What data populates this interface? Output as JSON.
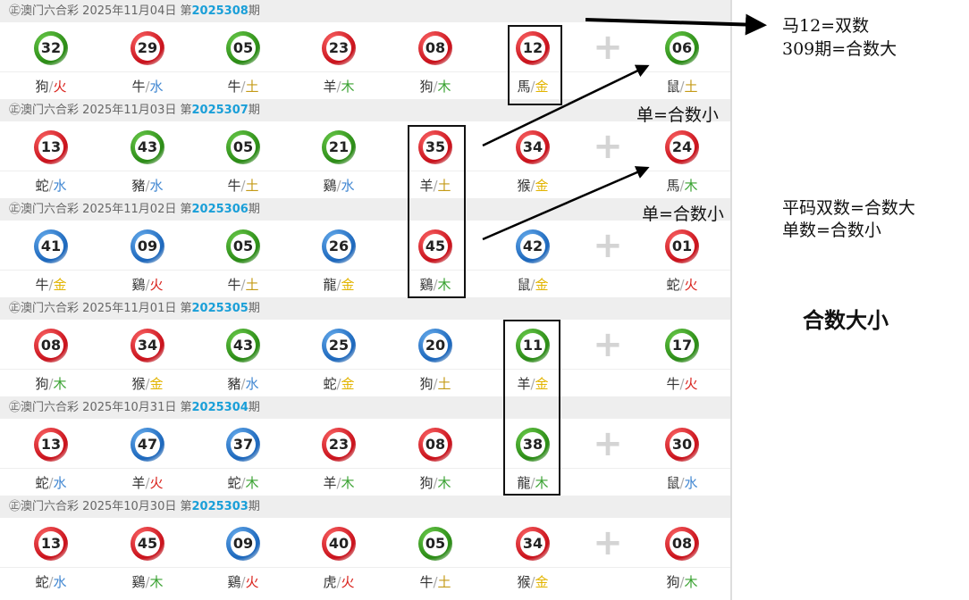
{
  "draws": [
    {
      "lottery": "澳门六合彩",
      "date": "2025年11月04日",
      "prefix": "第",
      "issue": "2025308",
      "suffix": "期",
      "balls": [
        {
          "num": "32",
          "color": "green",
          "zodiac": "狗",
          "element": "火"
        },
        {
          "num": "29",
          "color": "red",
          "zodiac": "牛",
          "element": "水"
        },
        {
          "num": "05",
          "color": "green",
          "zodiac": "牛",
          "element": "土"
        },
        {
          "num": "23",
          "color": "red",
          "zodiac": "羊",
          "element": "木"
        },
        {
          "num": "08",
          "color": "red",
          "zodiac": "狗",
          "element": "木"
        },
        {
          "num": "12",
          "color": "red",
          "zodiac": "馬",
          "element": "金"
        },
        {
          "num": "06",
          "color": "green",
          "zodiac": "鼠",
          "element": "土"
        }
      ]
    },
    {
      "lottery": "澳门六合彩",
      "date": "2025年11月03日",
      "prefix": "第",
      "issue": "2025307",
      "suffix": "期",
      "balls": [
        {
          "num": "13",
          "color": "red",
          "zodiac": "蛇",
          "element": "水"
        },
        {
          "num": "43",
          "color": "green",
          "zodiac": "豬",
          "element": "水"
        },
        {
          "num": "05",
          "color": "green",
          "zodiac": "牛",
          "element": "土"
        },
        {
          "num": "21",
          "color": "green",
          "zodiac": "鷄",
          "element": "水"
        },
        {
          "num": "35",
          "color": "red",
          "zodiac": "羊",
          "element": "土"
        },
        {
          "num": "34",
          "color": "red",
          "zodiac": "猴",
          "element": "金"
        },
        {
          "num": "24",
          "color": "red",
          "zodiac": "馬",
          "element": "木"
        }
      ]
    },
    {
      "lottery": "澳门六合彩",
      "date": "2025年11月02日",
      "prefix": "第",
      "issue": "2025306",
      "suffix": "期",
      "balls": [
        {
          "num": "41",
          "color": "blue",
          "zodiac": "牛",
          "element": "金"
        },
        {
          "num": "09",
          "color": "blue",
          "zodiac": "鷄",
          "element": "火"
        },
        {
          "num": "05",
          "color": "green",
          "zodiac": "牛",
          "element": "土"
        },
        {
          "num": "26",
          "color": "blue",
          "zodiac": "龍",
          "element": "金"
        },
        {
          "num": "45",
          "color": "red",
          "zodiac": "鷄",
          "element": "木"
        },
        {
          "num": "42",
          "color": "blue",
          "zodiac": "鼠",
          "element": "金"
        },
        {
          "num": "01",
          "color": "red",
          "zodiac": "蛇",
          "element": "火"
        }
      ]
    },
    {
      "lottery": "澳门六合彩",
      "date": "2025年11月01日",
      "prefix": "第",
      "issue": "2025305",
      "suffix": "期",
      "balls": [
        {
          "num": "08",
          "color": "red",
          "zodiac": "狗",
          "element": "木"
        },
        {
          "num": "34",
          "color": "red",
          "zodiac": "猴",
          "element": "金"
        },
        {
          "num": "43",
          "color": "green",
          "zodiac": "豬",
          "element": "水"
        },
        {
          "num": "25",
          "color": "blue",
          "zodiac": "蛇",
          "element": "金"
        },
        {
          "num": "20",
          "color": "blue",
          "zodiac": "狗",
          "element": "土"
        },
        {
          "num": "11",
          "color": "green",
          "zodiac": "羊",
          "element": "金"
        },
        {
          "num": "17",
          "color": "green",
          "zodiac": "牛",
          "element": "火"
        }
      ]
    },
    {
      "lottery": "澳门六合彩",
      "date": "2025年10月31日",
      "prefix": "第",
      "issue": "2025304",
      "suffix": "期",
      "balls": [
        {
          "num": "13",
          "color": "red",
          "zodiac": "蛇",
          "element": "水"
        },
        {
          "num": "47",
          "color": "blue",
          "zodiac": "羊",
          "element": "火"
        },
        {
          "num": "37",
          "color": "blue",
          "zodiac": "蛇",
          "element": "木"
        },
        {
          "num": "23",
          "color": "red",
          "zodiac": "羊",
          "element": "木"
        },
        {
          "num": "08",
          "color": "red",
          "zodiac": "狗",
          "element": "木"
        },
        {
          "num": "38",
          "color": "green",
          "zodiac": "龍",
          "element": "木"
        },
        {
          "num": "30",
          "color": "red",
          "zodiac": "鼠",
          "element": "水"
        }
      ]
    },
    {
      "lottery": "澳门六合彩",
      "date": "2025年10月30日",
      "prefix": "第",
      "issue": "2025303",
      "suffix": "期",
      "balls": [
        {
          "num": "13",
          "color": "red",
          "zodiac": "蛇",
          "element": "水"
        },
        {
          "num": "45",
          "color": "red",
          "zodiac": "鷄",
          "element": "木"
        },
        {
          "num": "09",
          "color": "blue",
          "zodiac": "鷄",
          "element": "火"
        },
        {
          "num": "40",
          "color": "red",
          "zodiac": "虎",
          "element": "火"
        },
        {
          "num": "05",
          "color": "green",
          "zodiac": "牛",
          "element": "土"
        },
        {
          "num": "34",
          "color": "red",
          "zodiac": "猴",
          "element": "金"
        },
        {
          "num": "08",
          "color": "red",
          "zodiac": "狗",
          "element": "木"
        }
      ]
    }
  ],
  "plus_icon": "plus-icon",
  "annotations": {
    "note1_line1": "马12=双数",
    "note1_line2": "309期=合数大",
    "note2": "单=合数小",
    "note3": "单=合数小",
    "note4_line1": "平码双数=合数大",
    "note4_line2": "单数=合数小",
    "title": "合数大小"
  }
}
